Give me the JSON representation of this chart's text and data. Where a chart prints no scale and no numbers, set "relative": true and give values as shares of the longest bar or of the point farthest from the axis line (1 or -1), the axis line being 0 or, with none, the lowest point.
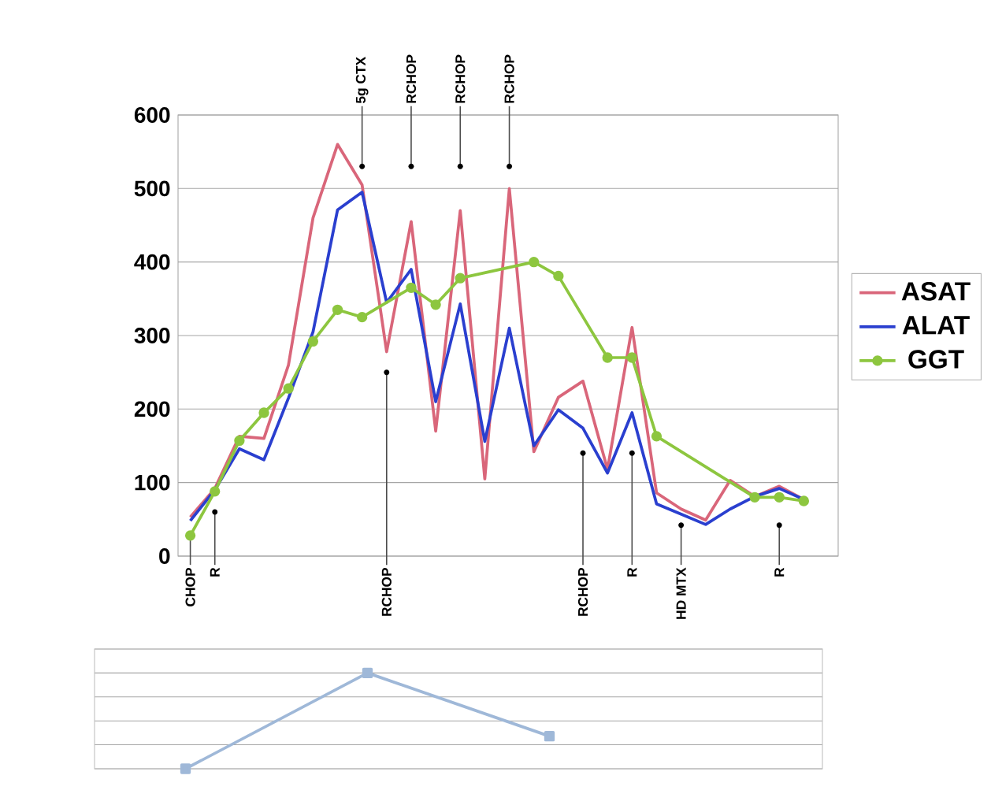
{
  "chart_data": [
    {
      "type": "line",
      "categories": [
        null,
        null,
        null,
        null,
        null,
        null,
        null,
        null,
        null,
        null,
        null,
        null,
        null,
        null,
        null,
        null,
        null,
        null,
        null,
        null,
        null,
        null,
        null,
        null,
        null,
        null
      ],
      "series": [
        {
          "name": "ASAT",
          "color": "#d9667a",
          "marker": "none",
          "values": [
            53,
            92,
            163,
            160,
            260,
            460,
            560,
            505,
            278,
            455,
            170,
            470,
            105,
            500,
            142,
            216,
            238,
            118,
            311,
            86,
            64,
            49,
            103,
            81,
            95,
            77
          ]
        },
        {
          "name": "ALAT",
          "color": "#2a3fcf",
          "marker": "none",
          "values": [
            48,
            90,
            146,
            131,
            215,
            305,
            471,
            495,
            345,
            390,
            210,
            343,
            156,
            310,
            150,
            199,
            174,
            113,
            195,
            71,
            57,
            43,
            64,
            81,
            92,
            77
          ]
        },
        {
          "name": "GGT",
          "color": "#8dc63f",
          "marker": "circle",
          "values": [
            28,
            88,
            157,
            195,
            228,
            292,
            335,
            325,
            null,
            365,
            342,
            378,
            null,
            null,
            400,
            381,
            null,
            270,
            270,
            163,
            null,
            null,
            null,
            80,
            80,
            75
          ]
        }
      ],
      "ylim": [
        0,
        600
      ],
      "yticks": [
        0,
        100,
        200,
        300,
        400,
        500,
        600
      ],
      "grid": "y",
      "legend": "right",
      "annotations": [
        {
          "text": "5g CTX",
          "y": 530
        },
        {
          "text": "RCHOP",
          "y": 530
        },
        {
          "text": "RCHOP",
          "y": 530
        },
        {
          "text": "RCHOP",
          "y": 530
        },
        {
          "text": "CHOP",
          "y": 28
        },
        {
          "text": "R",
          "y": 60
        },
        {
          "text": "RCHOP",
          "y": 250
        },
        {
          "text": "RCHOP",
          "y": 140
        },
        {
          "text": "R",
          "y": 140
        },
        {
          "text": "HD MTX",
          "y": 42
        },
        {
          "text": "R",
          "y": 42
        }
      ]
    },
    {
      "type": "line",
      "categories": [
        null,
        null,
        null,
        null
      ],
      "relative": true,
      "grid": "y",
      "marker": "square",
      "series": [
        {
          "color": "#9fb8d8",
          "values": [
            0,
            1,
            0.34,
            null
          ]
        }
      ]
    }
  ]
}
